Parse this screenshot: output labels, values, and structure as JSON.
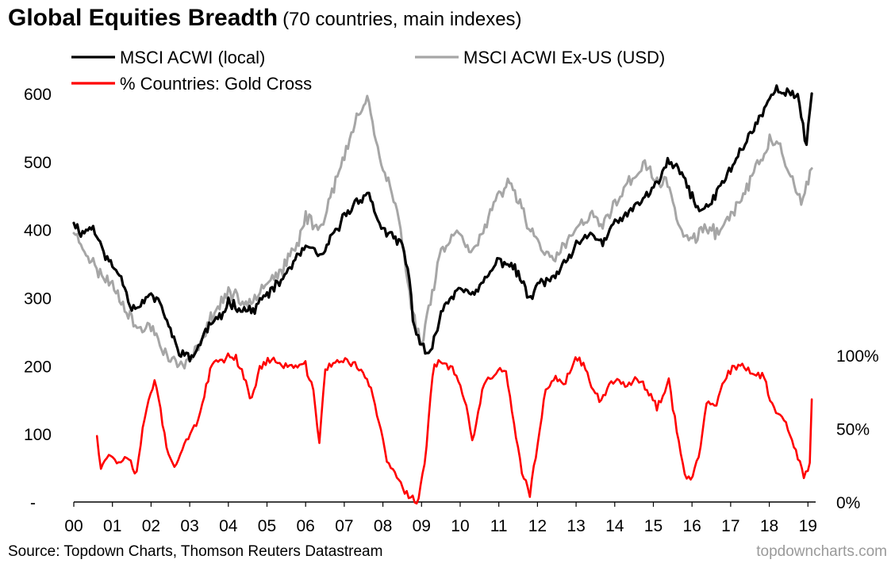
{
  "title": "Global Equities Breadth",
  "subtitle": "(70 countries, main indexes)",
  "source": "Source: Topdown Charts, Thomson Reuters Datastream",
  "brand": "topdowncharts.com",
  "chart_data": {
    "type": "line",
    "title": "Global Equities Breadth",
    "subtitle": "(70 countries, main indexes)",
    "colors": {
      "MSCI ACWI (local)": "#000000",
      "MSCI ACWI Ex-US (USD)": "#a6a6a6",
      "% Countries: Gold Cross": "#ff0000"
    },
    "legend": {
      "placement": "top-left",
      "entries": [
        "MSCI ACWI (local)",
        "MSCI ACWI Ex-US (USD)",
        "% Countries: Gold Cross"
      ]
    },
    "grid": false,
    "x_axis": {
      "unit": "year",
      "range": [
        2000,
        2019.2
      ],
      "tick_values": [
        2000,
        2001,
        2002,
        2003,
        2004,
        2005,
        2006,
        2007,
        2008,
        2009,
        2010,
        2011,
        2012,
        2013,
        2014,
        2015,
        2016,
        2017,
        2018,
        2019
      ],
      "tick_labels": [
        "00",
        "01",
        "02",
        "03",
        "04",
        "05",
        "06",
        "07",
        "08",
        "09",
        "10",
        "11",
        "12",
        "13",
        "14",
        "15",
        "16",
        "17",
        "18",
        "19"
      ]
    },
    "y_axis_left": {
      "range": [
        0,
        600
      ],
      "tick_values": [
        0,
        100,
        200,
        300,
        400,
        500,
        600
      ],
      "tick_labels": [
        "-",
        "100",
        "200",
        "300",
        "400",
        "500",
        "600"
      ]
    },
    "y_axis_right": {
      "range": [
        0,
        100
      ],
      "unit": "%",
      "tick_values": [
        0,
        50,
        100
      ],
      "tick_labels": [
        "0%",
        "50%",
        "100%"
      ]
    },
    "series": [
      {
        "name": "MSCI ACWI (local)",
        "axis": "left",
        "x": [
          2000.0,
          2000.2,
          2000.5,
          2000.7,
          2001.0,
          2001.2,
          2001.5,
          2001.7,
          2002.0,
          2002.3,
          2002.5,
          2002.7,
          2003.0,
          2003.2,
          2003.5,
          2003.8,
          2004.0,
          2004.3,
          2004.6,
          2005.0,
          2005.3,
          2005.6,
          2006.0,
          2006.4,
          2006.6,
          2007.0,
          2007.3,
          2007.6,
          2007.8,
          2008.0,
          2008.3,
          2008.5,
          2008.7,
          2008.8,
          2009.0,
          2009.2,
          2009.5,
          2010.0,
          2010.3,
          2010.5,
          2011.0,
          2011.3,
          2011.6,
          2011.8,
          2012.0,
          2012.3,
          2012.6,
          2013.0,
          2013.4,
          2013.7,
          2014.0,
          2014.5,
          2014.8,
          2015.0,
          2015.4,
          2015.7,
          2016.0,
          2016.2,
          2016.5,
          2017.0,
          2017.5,
          2018.0,
          2018.2,
          2018.5,
          2018.75,
          2018.95,
          2019.1
        ],
        "y": [
          410,
          395,
          405,
          375,
          345,
          335,
          285,
          290,
          305,
          285,
          250,
          225,
          210,
          225,
          260,
          270,
          295,
          285,
          280,
          305,
          320,
          345,
          375,
          360,
          380,
          420,
          440,
          455,
          425,
          400,
          385,
          380,
          320,
          260,
          230,
          210,
          280,
          320,
          300,
          315,
          355,
          350,
          325,
          295,
          320,
          325,
          340,
          375,
          395,
          380,
          410,
          430,
          450,
          460,
          500,
          485,
          450,
          425,
          440,
          490,
          540,
          590,
          610,
          600,
          595,
          520,
          600
        ]
      },
      {
        "name": "MSCI ACWI Ex-US (USD)",
        "axis": "left",
        "x": [
          2000.0,
          2000.3,
          2000.6,
          2001.0,
          2001.3,
          2001.7,
          2002.0,
          2002.3,
          2002.6,
          2002.9,
          2003.1,
          2003.3,
          2003.6,
          2004.0,
          2004.4,
          2004.7,
          2005.0,
          2005.4,
          2005.8,
          2006.0,
          2006.4,
          2006.6,
          2007.0,
          2007.3,
          2007.6,
          2007.8,
          2008.0,
          2008.2,
          2008.4,
          2008.6,
          2008.8,
          2009.0,
          2009.2,
          2009.5,
          2010.0,
          2010.3,
          2010.5,
          2011.0,
          2011.3,
          2011.6,
          2011.8,
          2012.0,
          2012.4,
          2012.6,
          2013.0,
          2013.4,
          2013.7,
          2014.0,
          2014.5,
          2014.8,
          2015.0,
          2015.4,
          2015.7,
          2016.0,
          2016.3,
          2016.6,
          2017.0,
          2017.5,
          2018.0,
          2018.3,
          2018.6,
          2018.85,
          2019.1
        ],
        "y": [
          395,
          370,
          340,
          320,
          290,
          250,
          260,
          225,
          205,
          200,
          215,
          240,
          275,
          310,
          290,
          305,
          325,
          340,
          380,
          420,
          400,
          445,
          505,
          560,
          600,
          535,
          490,
          460,
          420,
          340,
          270,
          230,
          290,
          370,
          400,
          365,
          385,
          450,
          470,
          435,
          400,
          385,
          350,
          370,
          400,
          420,
          405,
          440,
          480,
          495,
          475,
          465,
          400,
          380,
          405,
          395,
          420,
          470,
          530,
          520,
          470,
          435,
          490
        ]
      },
      {
        "name": "% Countries: Gold Cross",
        "axis": "right",
        "x": [
          2000.6,
          2000.7,
          2000.9,
          2001.2,
          2001.4,
          2001.6,
          2001.85,
          2002.1,
          2002.2,
          2002.4,
          2002.6,
          2002.8,
          2003.0,
          2003.2,
          2003.4,
          2003.6,
          2004.0,
          2004.2,
          2004.4,
          2004.6,
          2004.8,
          2005.0,
          2005.3,
          2005.6,
          2006.0,
          2006.2,
          2006.35,
          2006.5,
          2006.8,
          2007.0,
          2007.3,
          2007.5,
          2007.7,
          2007.9,
          2008.1,
          2008.3,
          2008.5,
          2008.7,
          2008.9,
          2009.1,
          2009.3,
          2009.5,
          2009.8,
          2010.0,
          2010.2,
          2010.3,
          2010.6,
          2011.0,
          2011.2,
          2011.4,
          2011.6,
          2011.8,
          2012.0,
          2012.2,
          2012.4,
          2012.7,
          2013.0,
          2013.2,
          2013.4,
          2013.6,
          2014.0,
          2014.3,
          2014.6,
          2014.9,
          2015.1,
          2015.4,
          2015.6,
          2015.8,
          2016.0,
          2016.2,
          2016.4,
          2016.6,
          2016.8,
          2017.0,
          2017.3,
          2017.6,
          2017.9,
          2018.0,
          2018.2,
          2018.4,
          2018.6,
          2018.75,
          2018.9,
          2019.05,
          2019.1
        ],
        "y": [
          45,
          25,
          32,
          27,
          32,
          18,
          60,
          85,
          72,
          35,
          25,
          35,
          48,
          52,
          75,
          95,
          99,
          99,
          85,
          70,
          90,
          97,
          95,
          92,
          93,
          75,
          40,
          90,
          96,
          96,
          94,
          88,
          75,
          55,
          28,
          20,
          10,
          3,
          0,
          30,
          92,
          96,
          90,
          80,
          60,
          38,
          80,
          90,
          88,
          50,
          20,
          5,
          38,
          75,
          85,
          82,
          97,
          95,
          78,
          70,
          85,
          80,
          83,
          75,
          65,
          82,
          50,
          20,
          15,
          35,
          70,
          62,
          82,
          90,
          92,
          88,
          85,
          70,
          60,
          55,
          40,
          28,
          18,
          25,
          70
        ]
      }
    ]
  }
}
